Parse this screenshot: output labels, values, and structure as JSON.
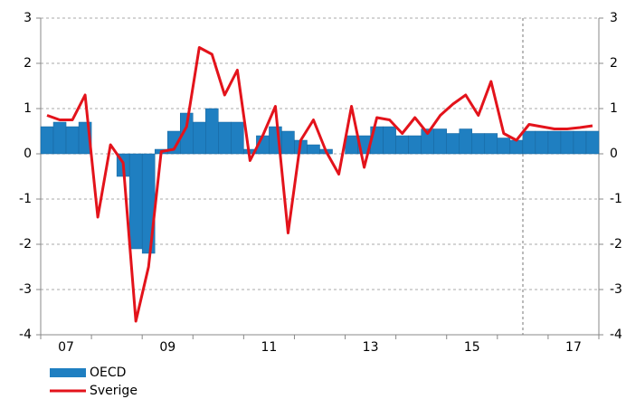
{
  "chart_data": {
    "type": "bar-line",
    "categories": [
      null,
      null,
      "07",
      null,
      null,
      null,
      null,
      null,
      null,
      null,
      "09",
      null,
      null,
      null,
      null,
      null,
      null,
      null,
      "11",
      null,
      null,
      null,
      null,
      null,
      null,
      null,
      "13",
      null,
      null,
      null,
      null,
      null,
      null,
      null,
      "15",
      null,
      null,
      null,
      null,
      null,
      null,
      null,
      "17",
      null
    ],
    "series": [
      {
        "name": "OECD",
        "color": "#1f7fc1",
        "kind": "bar",
        "values": [
          0.6,
          0.7,
          0.6,
          0.7,
          0,
          0,
          -0.5,
          -2.1,
          -2.2,
          0.1,
          0.5,
          0.9,
          0.7,
          1.0,
          0.7,
          0.7,
          0.1,
          0.4,
          0.6,
          0.5,
          0.3,
          0.2,
          0.1,
          0,
          0.4,
          0.4,
          0.6,
          0.6,
          0.4,
          0.4,
          0.55,
          0.55,
          0.45,
          0.55,
          0.45,
          0.45,
          0.35,
          0.3,
          0.5,
          0.5,
          0.5,
          0.5,
          0.5,
          0.5
        ]
      },
      {
        "name": "Sverige",
        "color": "#e3131b",
        "kind": "line",
        "values": [
          0.85,
          0.75,
          0.75,
          1.3,
          -1.4,
          0.2,
          -0.2,
          -3.7,
          -2.5,
          0.05,
          0.1,
          0.6,
          2.35,
          2.2,
          1.3,
          1.85,
          -0.15,
          0.4,
          1.05,
          -1.75,
          0.3,
          0.75,
          0.05,
          -0.45,
          1.05,
          -0.3,
          0.8,
          0.75,
          0.45,
          0.8,
          0.45,
          0.85,
          1.1,
          1.3,
          0.85,
          1.6,
          0.45,
          0.3,
          0.65,
          0.6,
          0.55,
          0.55,
          0.58,
          0.62
        ]
      }
    ],
    "ylim": [
      -4,
      3
    ],
    "yticks": [
      -4,
      -3,
      -2,
      -1,
      0,
      1,
      2,
      3
    ],
    "grid": true
  }
}
